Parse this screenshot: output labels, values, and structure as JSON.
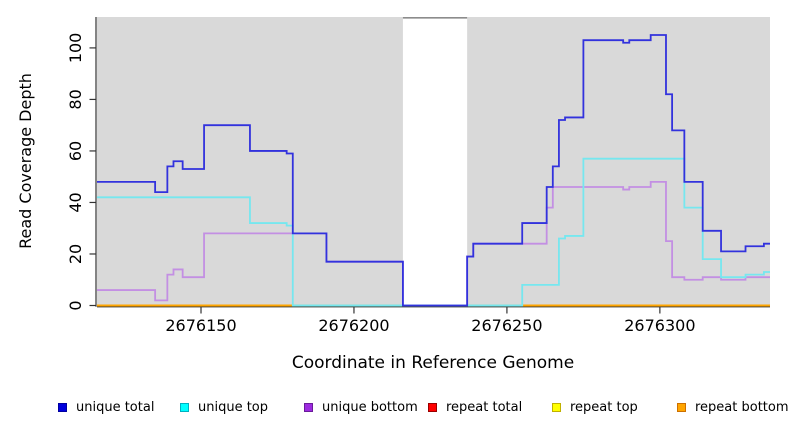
{
  "chart_data": {
    "type": "line",
    "step": true,
    "title": "",
    "xlabel": "Coordinate in Reference Genome",
    "ylabel": "Read Coverage Depth",
    "xlim": [
      2676116,
      2676336
    ],
    "ylim": [
      0,
      112
    ],
    "x_ticks": [
      2676150,
      2676200,
      2676250,
      2676300
    ],
    "y_ticks": [
      0,
      20,
      40,
      60,
      80,
      100
    ],
    "grid": "off",
    "legend_position": "bottom",
    "plot_bg": "#d9d9d9",
    "axis_color": "#333333",
    "gap_region": {
      "from": 2676216,
      "to": 2676237,
      "color": "#ffffff",
      "edge_color": "#8c8c8c",
      "note": "white no-data band"
    },
    "zero_overlay": {
      "from": 2676180,
      "to": 2676255,
      "color": "#96d9a6",
      "note": "greenish baseline segment where unique top = 0"
    },
    "series": [
      {
        "name": "unique total",
        "line_color": "#3232dd",
        "legend_fill": "#0000dd",
        "legend_border": "#0000a0",
        "points": [
          [
            2676116,
            48
          ],
          [
            2676135,
            44
          ],
          [
            2676139,
            54
          ],
          [
            2676141,
            56
          ],
          [
            2676144,
            53
          ],
          [
            2676151,
            70
          ],
          [
            2676166,
            60
          ],
          [
            2676178,
            59
          ],
          [
            2676180,
            28
          ],
          [
            2676191,
            17
          ],
          [
            2676216,
            0
          ],
          [
            2676237,
            19
          ],
          [
            2676239,
            24
          ],
          [
            2676255,
            32
          ],
          [
            2676263,
            46
          ],
          [
            2676265,
            54
          ],
          [
            2676267,
            72
          ],
          [
            2676269,
            73
          ],
          [
            2676275,
            103
          ],
          [
            2676288,
            102
          ],
          [
            2676290,
            103
          ],
          [
            2676297,
            105
          ],
          [
            2676302,
            82
          ],
          [
            2676304,
            68
          ],
          [
            2676308,
            48
          ],
          [
            2676314,
            29
          ],
          [
            2676320,
            21
          ],
          [
            2676328,
            23
          ],
          [
            2676334,
            24
          ]
        ]
      },
      {
        "name": "unique top",
        "line_color": "#76e7ef",
        "legend_fill": "#00ffff",
        "legend_border": "#00b0c0",
        "points": [
          [
            2676116,
            42
          ],
          [
            2676166,
            32
          ],
          [
            2676178,
            31
          ],
          [
            2676180,
            0
          ],
          [
            2676255,
            8
          ],
          [
            2676267,
            26
          ],
          [
            2676269,
            27
          ],
          [
            2676275,
            57
          ],
          [
            2676308,
            38
          ],
          [
            2676314,
            18
          ],
          [
            2676320,
            11
          ],
          [
            2676328,
            12
          ],
          [
            2676334,
            13
          ]
        ]
      },
      {
        "name": "unique bottom",
        "line_color": "#c38fe3",
        "legend_fill": "#9d2ae0",
        "legend_border": "#6a1b9a",
        "points": [
          [
            2676116,
            6
          ],
          [
            2676135,
            2
          ],
          [
            2676139,
            12
          ],
          [
            2676141,
            14
          ],
          [
            2676144,
            11
          ],
          [
            2676151,
            28
          ],
          [
            2676191,
            17
          ],
          [
            2676216,
            0
          ],
          [
            2676237,
            19
          ],
          [
            2676239,
            24
          ],
          [
            2676263,
            38
          ],
          [
            2676265,
            46
          ],
          [
            2676288,
            45
          ],
          [
            2676290,
            46
          ],
          [
            2676297,
            48
          ],
          [
            2676302,
            25
          ],
          [
            2676304,
            11
          ],
          [
            2676308,
            10
          ],
          [
            2676314,
            11
          ],
          [
            2676320,
            10
          ],
          [
            2676328,
            11
          ]
        ]
      },
      {
        "name": "repeat total",
        "line_color": "#ff0000",
        "legend_fill": "#ff0000",
        "legend_border": "#990000",
        "points": [
          [
            2676116,
            0
          ]
        ]
      },
      {
        "name": "repeat top",
        "line_color": "#ffff00",
        "legend_fill": "#ffff00",
        "legend_border": "#c0b000",
        "points": [
          [
            2676116,
            0
          ]
        ]
      },
      {
        "name": "repeat bottom",
        "line_color": "#ffa500",
        "legend_fill": "#ffa500",
        "legend_border": "#cc7000",
        "points": [
          [
            2676116,
            0
          ]
        ]
      }
    ]
  }
}
